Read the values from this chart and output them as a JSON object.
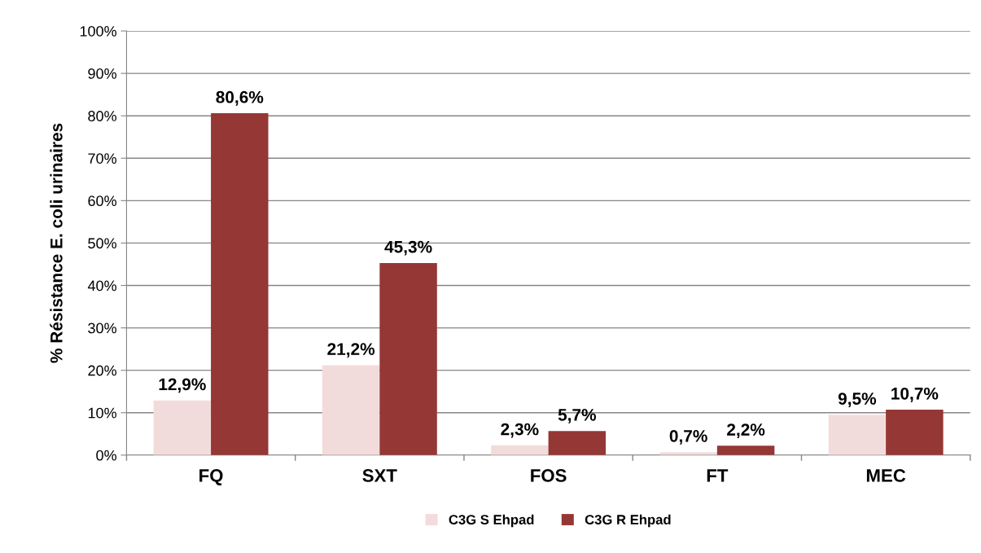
{
  "chart_data": {
    "type": "bar",
    "ylabel": "% Résistance E. coli urinaires",
    "categories": [
      "FQ",
      "SXT",
      "FOS",
      "FT",
      "MEC"
    ],
    "series": [
      {
        "name": "C3G S Ehpad",
        "color": "#f2dcdb",
        "values": [
          12.9,
          21.2,
          2.3,
          0.7,
          9.5
        ],
        "value_labels": [
          "12,9%",
          "21,2%",
          "2,3%",
          "0,7%",
          "9,5%"
        ]
      },
      {
        "name": "C3G R Ehpad",
        "color": "#953735",
        "values": [
          80.6,
          45.3,
          5.7,
          2.2,
          10.7
        ],
        "value_labels": [
          "80,6%",
          "45,3%",
          "5,7%",
          "2,2%",
          "10,7%"
        ]
      }
    ],
    "ylim": [
      0,
      100
    ],
    "yticks": [
      {
        "value": 0,
        "label": "0%"
      },
      {
        "value": 10,
        "label": "10%"
      },
      {
        "value": 20,
        "label": "20%"
      },
      {
        "value": 30,
        "label": "30%"
      },
      {
        "value": 40,
        "label": "40%"
      },
      {
        "value": 50,
        "label": "50%"
      },
      {
        "value": 60,
        "label": "60%"
      },
      {
        "value": 70,
        "label": "70%"
      },
      {
        "value": 80,
        "label": "80%"
      },
      {
        "value": 90,
        "label": "90%"
      },
      {
        "value": 100,
        "label": "100%"
      }
    ],
    "grid": "y",
    "legend": "bottom"
  }
}
